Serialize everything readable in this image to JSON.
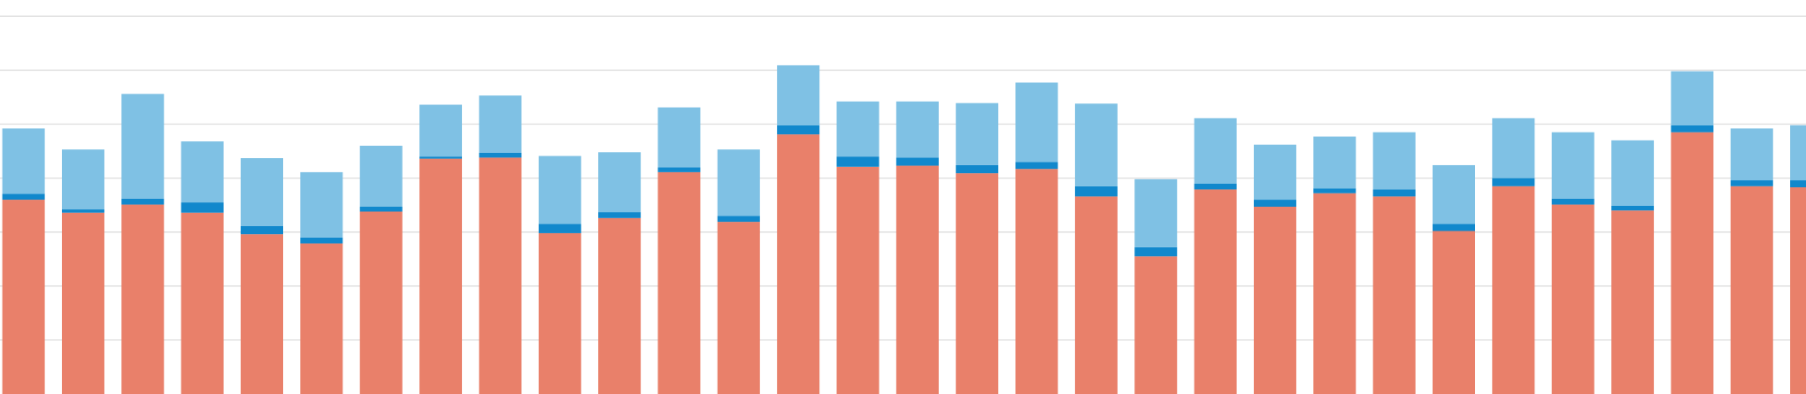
{
  "chart_data": {
    "type": "stacked-bar",
    "series": [
      {
        "color": "#e9806a",
        "values": [
          3.6,
          3.36,
          3.51,
          3.36,
          2.96,
          2.79,
          3.38,
          4.36,
          4.38,
          2.98,
          3.26,
          4.11,
          3.19,
          4.81,
          4.21,
          4.23,
          4.09,
          4.17,
          3.66,
          2.55,
          3.79,
          3.47,
          3.72,
          3.66,
          3.02,
          3.85,
          3.51,
          3.4,
          4.85,
          3.85,
          3.83
        ]
      },
      {
        "color": "#1188cc",
        "values": [
          0.11,
          0.06,
          0.11,
          0.19,
          0.15,
          0.11,
          0.09,
          0.04,
          0.09,
          0.17,
          0.11,
          0.09,
          0.11,
          0.17,
          0.19,
          0.15,
          0.15,
          0.13,
          0.19,
          0.17,
          0.11,
          0.13,
          0.09,
          0.13,
          0.13,
          0.15,
          0.11,
          0.09,
          0.13,
          0.11,
          0.13
        ]
      },
      {
        "color": "#7fc1e4",
        "values": [
          1.21,
          1.11,
          1.94,
          1.13,
          1.26,
          1.21,
          1.13,
          0.96,
          1.06,
          1.26,
          1.11,
          1.11,
          1.23,
          1.11,
          1.02,
          1.04,
          1.15,
          1.47,
          1.53,
          1.26,
          1.21,
          1.02,
          0.96,
          1.06,
          1.09,
          1.11,
          1.23,
          1.21,
          1.0,
          0.96,
          1.02
        ]
      }
    ],
    "ylim": [
      0,
      7.3
    ],
    "yticks": [
      1,
      2,
      3,
      4,
      5,
      6,
      7
    ],
    "grid": true
  }
}
